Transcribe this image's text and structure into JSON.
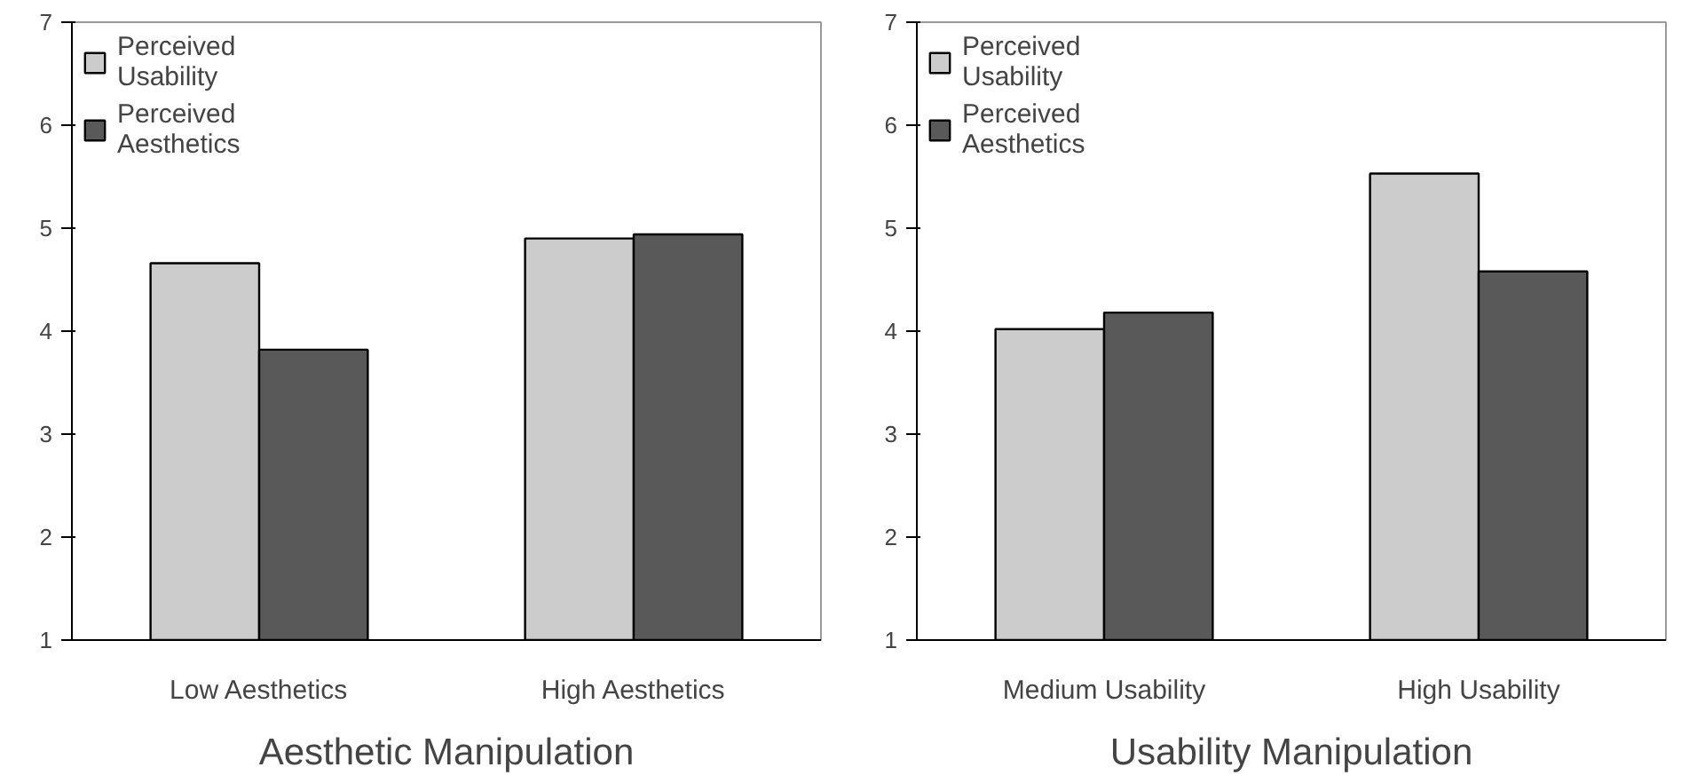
{
  "chart_data": [
    {
      "type": "bar",
      "xlabel": "Aesthetic Manipulation",
      "categories": [
        "Low Aesthetics",
        "High Aesthetics"
      ],
      "ylim": [
        1,
        7
      ],
      "yticks": [
        1,
        2,
        3,
        4,
        5,
        6,
        7
      ],
      "grid": false,
      "legend": "top left",
      "series": [
        {
          "name": "Perceived Usability",
          "color": "#cccccc",
          "values": [
            4.66,
            4.9
          ]
        },
        {
          "name": "Perceived Aesthetics",
          "color": "#595959",
          "values": [
            3.82,
            4.94
          ]
        }
      ]
    },
    {
      "type": "bar",
      "xlabel": "Usability Manipulation",
      "categories": [
        "Medium Usability",
        "High Usability"
      ],
      "ylim": [
        1,
        7
      ],
      "yticks": [
        1,
        2,
        3,
        4,
        5,
        6,
        7
      ],
      "grid": false,
      "legend": "top left",
      "series": [
        {
          "name": "Perceived Usability",
          "color": "#cccccc",
          "values": [
            4.02,
            5.53
          ]
        },
        {
          "name": "Perceived Aesthetics",
          "color": "#595959",
          "values": [
            4.18,
            4.58
          ]
        }
      ]
    }
  ]
}
